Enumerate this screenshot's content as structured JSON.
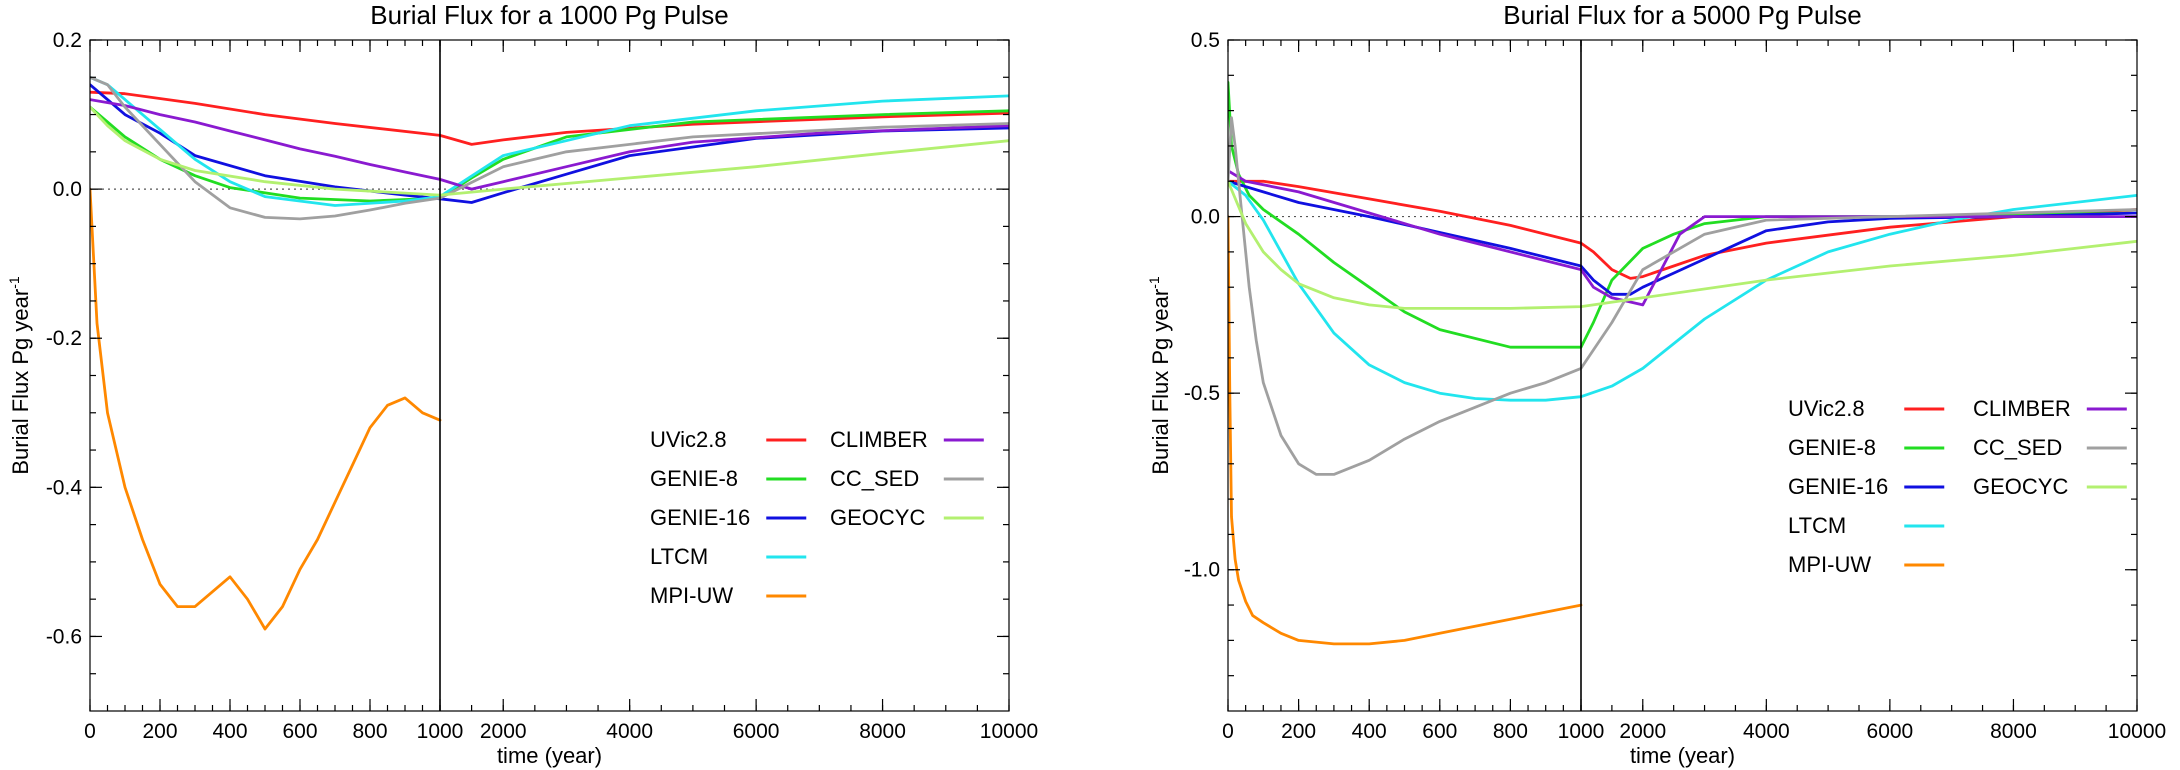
{
  "chart_data": [
    {
      "type": "line",
      "title": "Burial Flux for a 1000 Pg Pulse",
      "xlabel": "time (year)",
      "ylabel": "Burial Flux Pg year",
      "ylabel_sup": "-1",
      "ylim": [
        -0.7,
        0.2
      ],
      "x_axis": {
        "segments": [
          {
            "range": [
              0,
              1000
            ],
            "ticks": [
              0,
              200,
              400,
              600,
              800,
              1000
            ]
          },
          {
            "range": [
              1000,
              10000
            ],
            "ticks": [
              2000,
              4000,
              6000,
              8000,
              10000
            ]
          }
        ]
      },
      "y_ticks": [
        {
          "value": 0.2,
          "label": "0.2"
        },
        {
          "value": 0.0,
          "label": "0.0"
        },
        {
          "value": -0.2,
          "label": "-0.2"
        },
        {
          "value": -0.4,
          "label": "-0.4"
        },
        {
          "value": -0.6,
          "label": "-0.6"
        }
      ],
      "zero_line": true,
      "grid": false,
      "legend": {
        "position": "lower-right",
        "columns": 2
      },
      "series": [
        {
          "name": "UVic2.8",
          "color": "#ff2020",
          "x": [
            0,
            100,
            300,
            500,
            700,
            1000,
            1500,
            2000,
            3000,
            5000,
            8000,
            10000
          ],
          "y": [
            0.13,
            0.128,
            0.115,
            0.1,
            0.088,
            0.072,
            0.06,
            0.066,
            0.076,
            0.087,
            0.097,
            0.102
          ]
        },
        {
          "name": "GENIE-8",
          "color": "#22dd22",
          "x": [
            0,
            50,
            100,
            200,
            300,
            400,
            600,
            800,
            1000,
            1500,
            2000,
            3000,
            5000,
            8000,
            10000
          ],
          "y": [
            0.11,
            0.09,
            0.07,
            0.04,
            0.018,
            0.002,
            -0.012,
            -0.016,
            -0.012,
            0.015,
            0.04,
            0.07,
            0.09,
            0.1,
            0.105
          ]
        },
        {
          "name": "GENIE-16",
          "color": "#1010e0",
          "x": [
            0,
            50,
            100,
            200,
            300,
            500,
            700,
            900,
            1000,
            1500,
            2000,
            3000,
            4000,
            6000,
            8000,
            10000
          ],
          "y": [
            0.14,
            0.12,
            0.1,
            0.075,
            0.045,
            0.018,
            0.003,
            -0.008,
            -0.013,
            -0.018,
            -0.005,
            0.02,
            0.045,
            0.068,
            0.078,
            0.082
          ]
        },
        {
          "name": "LTCM",
          "color": "#22e5ee",
          "x": [
            0,
            50,
            100,
            200,
            300,
            400,
            500,
            700,
            900,
            1000,
            2000,
            4000,
            6000,
            8000,
            10000
          ],
          "y": [
            0.15,
            0.14,
            0.12,
            0.08,
            0.04,
            0.01,
            -0.01,
            -0.022,
            -0.016,
            -0.01,
            0.045,
            0.085,
            0.105,
            0.118,
            0.125
          ]
        },
        {
          "name": "MPI-UW",
          "color": "#ff8800",
          "x": [
            0,
            20,
            50,
            100,
            150,
            200,
            250,
            300,
            350,
            400,
            450,
            500,
            550,
            600,
            650,
            700,
            750,
            800,
            850,
            900,
            950,
            1000
          ],
          "y": [
            0.0,
            -0.18,
            -0.3,
            -0.4,
            -0.47,
            -0.53,
            -0.56,
            -0.56,
            -0.54,
            -0.52,
            -0.55,
            -0.59,
            -0.56,
            -0.51,
            -0.47,
            -0.42,
            -0.37,
            -0.32,
            -0.29,
            -0.28,
            -0.3,
            -0.31
          ]
        },
        {
          "name": "CLIMBER",
          "color": "#8a1ad0",
          "x": [
            0,
            100,
            200,
            300,
            400,
            500,
            600,
            700,
            800,
            900,
            1000,
            1500,
            2000,
            3000,
            4000,
            5000,
            7000,
            10000
          ],
          "y": [
            0.12,
            0.112,
            0.1,
            0.09,
            0.078,
            0.066,
            0.054,
            0.044,
            0.033,
            0.023,
            0.013,
            0.0,
            0.01,
            0.03,
            0.05,
            0.063,
            0.075,
            0.085
          ]
        },
        {
          "name": "CC_SED",
          "color": "#a0a0a0",
          "x": [
            0,
            50,
            100,
            200,
            300,
            400,
            500,
            600,
            700,
            800,
            900,
            1000,
            2000,
            3000,
            5000,
            8000,
            10000
          ],
          "y": [
            0.15,
            0.14,
            0.11,
            0.06,
            0.01,
            -0.025,
            -0.038,
            -0.04,
            -0.036,
            -0.028,
            -0.019,
            -0.012,
            0.03,
            0.05,
            0.07,
            0.083,
            0.088
          ]
        },
        {
          "name": "GEOCYC",
          "color": "#b3f070",
          "x": [
            0,
            50,
            100,
            200,
            300,
            500,
            700,
            1000,
            2000,
            4000,
            6000,
            8000,
            10000
          ],
          "y": [
            0.11,
            0.085,
            0.065,
            0.04,
            0.025,
            0.01,
            0.0,
            -0.008,
            0.0,
            0.015,
            0.03,
            0.048,
            0.065
          ]
        }
      ]
    },
    {
      "type": "line",
      "title": "Burial Flux for a 5000 Pg Pulse",
      "xlabel": "time (year)",
      "ylabel": "Burial Flux Pg year",
      "ylabel_sup": "-1",
      "ylim": [
        -1.4,
        0.5
      ],
      "x_axis": {
        "segments": [
          {
            "range": [
              0,
              1000
            ],
            "ticks": [
              0,
              200,
              400,
              600,
              800,
              1000
            ]
          },
          {
            "range": [
              1000,
              10000
            ],
            "ticks": [
              2000,
              4000,
              6000,
              8000,
              10000
            ]
          }
        ]
      },
      "y_ticks": [
        {
          "value": 0.5,
          "label": "0.5"
        },
        {
          "value": 0.0,
          "label": "0.0"
        },
        {
          "value": -0.5,
          "label": "-0.5"
        },
        {
          "value": -1.0,
          "label": "-1.0"
        }
      ],
      "zero_line": true,
      "grid": false,
      "legend": {
        "position": "upper-right",
        "columns": 2
      },
      "series": [
        {
          "name": "UVic2.8",
          "color": "#ff2020",
          "x": [
            0,
            100,
            200,
            400,
            600,
            800,
            1000,
            1200,
            1500,
            1800,
            2000,
            2500,
            3000,
            4000,
            6000,
            8000,
            10000
          ],
          "y": [
            0.1,
            0.1,
            0.085,
            0.05,
            0.015,
            -0.025,
            -0.075,
            -0.1,
            -0.15,
            -0.175,
            -0.17,
            -0.14,
            -0.11,
            -0.075,
            -0.03,
            0.0,
            0.02
          ]
        },
        {
          "name": "GENIE-8",
          "color": "#22dd22",
          "x": [
            0,
            10,
            30,
            60,
            100,
            200,
            300,
            400,
            500,
            600,
            800,
            1000,
            1200,
            1500,
            2000,
            2500,
            3000,
            4000,
            6000,
            8000,
            10000
          ],
          "y": [
            0.38,
            0.2,
            0.12,
            0.06,
            0.02,
            -0.05,
            -0.13,
            -0.2,
            -0.27,
            -0.32,
            -0.37,
            -0.37,
            -0.3,
            -0.18,
            -0.09,
            -0.05,
            -0.02,
            0.0,
            0.0,
            0.005,
            0.01
          ]
        },
        {
          "name": "GENIE-16",
          "color": "#1010e0",
          "x": [
            0,
            100,
            200,
            400,
            600,
            800,
            1000,
            1200,
            1500,
            1800,
            2000,
            2500,
            3000,
            3500,
            4000,
            5000,
            6000,
            8000,
            10000
          ],
          "y": [
            0.1,
            0.07,
            0.04,
            0.0,
            -0.045,
            -0.09,
            -0.14,
            -0.18,
            -0.22,
            -0.22,
            -0.2,
            -0.16,
            -0.12,
            -0.08,
            -0.04,
            -0.015,
            -0.005,
            0.0,
            0.01
          ]
        },
        {
          "name": "LTCM",
          "color": "#22e5ee",
          "x": [
            0,
            50,
            100,
            150,
            200,
            300,
            400,
            500,
            600,
            700,
            800,
            900,
            1000,
            1500,
            2000,
            3000,
            4000,
            5000,
            6000,
            7000,
            8000,
            10000
          ],
          "y": [
            0.1,
            0.06,
            -0.01,
            -0.1,
            -0.19,
            -0.33,
            -0.42,
            -0.47,
            -0.5,
            -0.515,
            -0.52,
            -0.52,
            -0.51,
            -0.48,
            -0.43,
            -0.29,
            -0.18,
            -0.1,
            -0.05,
            -0.01,
            0.02,
            0.06
          ]
        },
        {
          "name": "MPI-UW",
          "color": "#ff8800",
          "x": [
            0,
            5,
            10,
            20,
            30,
            50,
            70,
            100,
            150,
            200,
            300,
            400,
            500,
            600,
            700,
            800,
            900,
            1000
          ],
          "y": [
            0.0,
            -0.5,
            -0.85,
            -0.97,
            -1.03,
            -1.09,
            -1.13,
            -1.15,
            -1.18,
            -1.2,
            -1.21,
            -1.21,
            -1.2,
            -1.18,
            -1.16,
            -1.14,
            -1.12,
            -1.1
          ]
        },
        {
          "name": "CLIMBER",
          "color": "#8a1ad0",
          "x": [
            0,
            50,
            100,
            200,
            400,
            600,
            800,
            1000,
            1200,
            1500,
            2000,
            2300,
            2600,
            3000,
            4000,
            6000,
            8000,
            10000
          ],
          "y": [
            0.13,
            0.1,
            0.09,
            0.07,
            0.01,
            -0.05,
            -0.1,
            -0.15,
            -0.2,
            -0.23,
            -0.25,
            -0.15,
            -0.05,
            0.0,
            0.0,
            0.0,
            0.0,
            0.0
          ]
        },
        {
          "name": "CC_SED",
          "color": "#a0a0a0",
          "x": [
            0,
            10,
            20,
            40,
            60,
            80,
            100,
            150,
            200,
            250,
            300,
            400,
            500,
            600,
            700,
            800,
            900,
            1000,
            1500,
            2000,
            3000,
            4000,
            6000,
            8000,
            10000
          ],
          "y": [
            0.1,
            0.28,
            0.2,
            0.0,
            -0.2,
            -0.35,
            -0.47,
            -0.62,
            -0.7,
            -0.73,
            -0.73,
            -0.69,
            -0.63,
            -0.58,
            -0.54,
            -0.5,
            -0.47,
            -0.43,
            -0.3,
            -0.15,
            -0.05,
            -0.01,
            0.0,
            0.01,
            0.02
          ]
        },
        {
          "name": "GEOCYC",
          "color": "#b3f070",
          "x": [
            0,
            50,
            100,
            150,
            200,
            300,
            400,
            500,
            600,
            700,
            800,
            1000,
            2000,
            4000,
            6000,
            8000,
            10000
          ],
          "y": [
            0.1,
            -0.02,
            -0.1,
            -0.15,
            -0.19,
            -0.23,
            -0.25,
            -0.26,
            -0.26,
            -0.26,
            -0.26,
            -0.255,
            -0.23,
            -0.18,
            -0.14,
            -0.11,
            -0.07
          ]
        }
      ]
    }
  ]
}
